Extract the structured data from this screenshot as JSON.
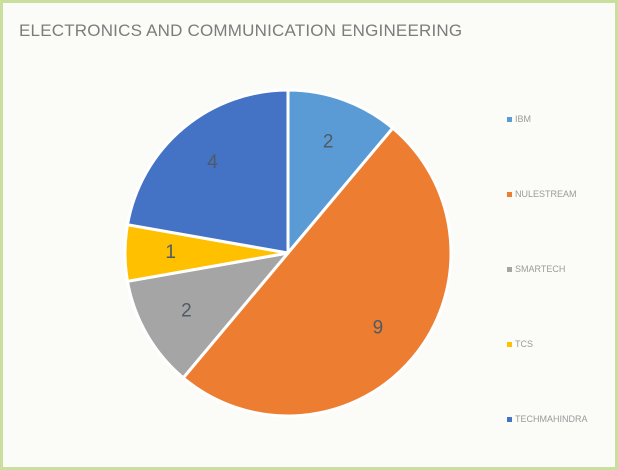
{
  "chart_data": {
    "type": "pie",
    "title": "ELECTRONICS AND COMMUNICATION ENGINEERING",
    "categories": [
      "IBM",
      "NULESTREAM",
      "SMARTECH",
      "TCS",
      "TECHMAHINDRA"
    ],
    "values": [
      2,
      9,
      2,
      1,
      4
    ],
    "colors": [
      "#5b9bd5",
      "#ed7d31",
      "#a5a5a5",
      "#ffc000",
      "#4472c4"
    ],
    "legend_position": "right",
    "start_angle_deg": 0,
    "direction": "clockwise"
  }
}
